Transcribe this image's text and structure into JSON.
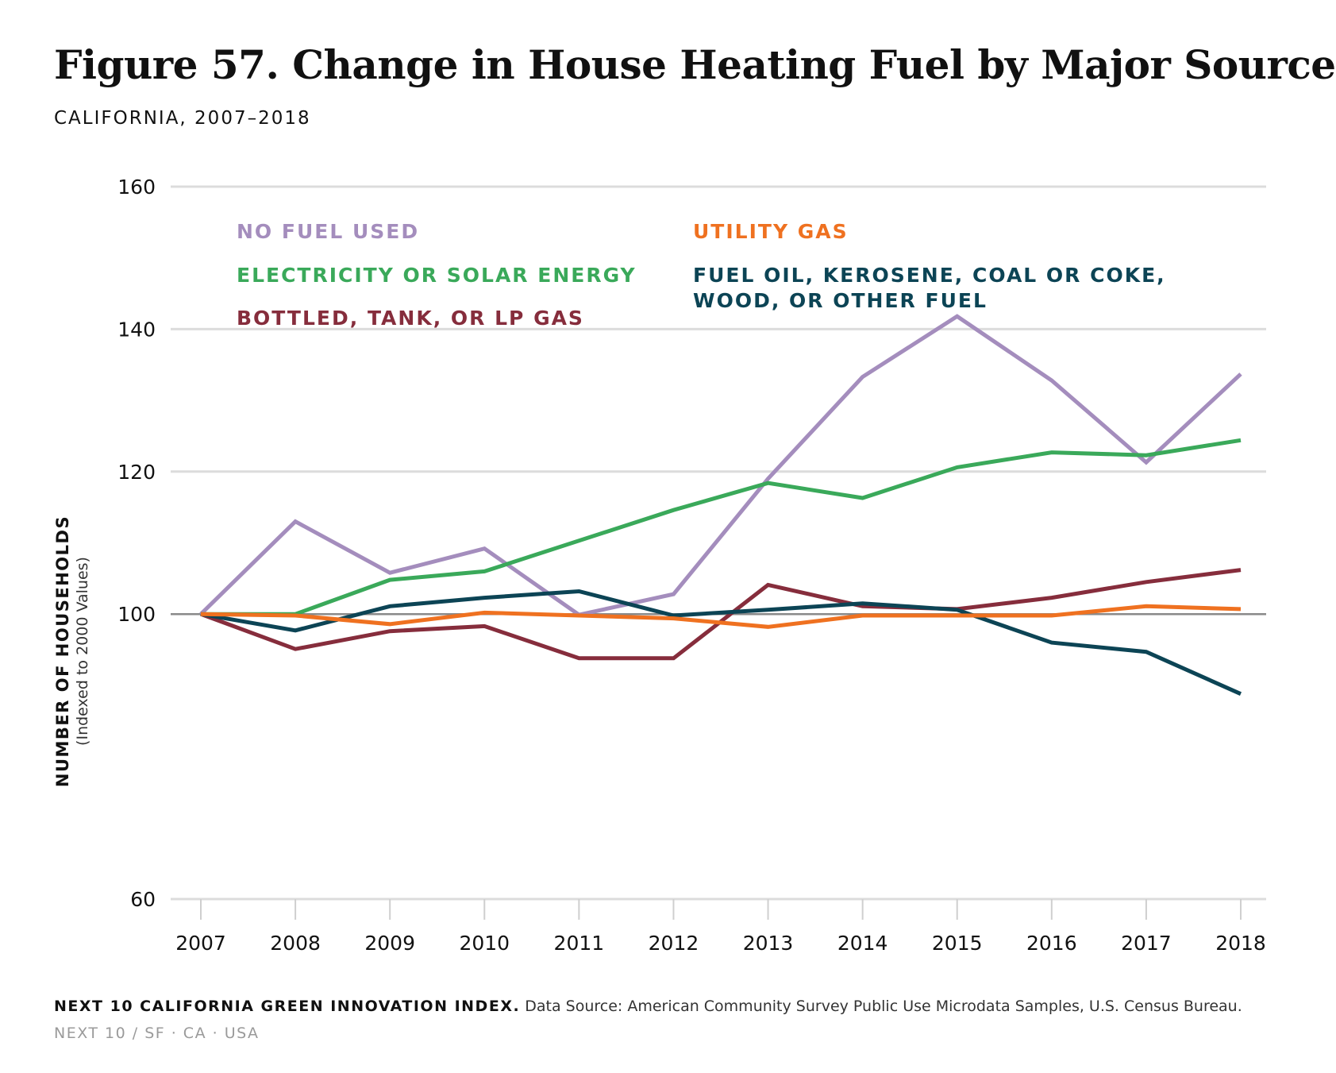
{
  "title": "Figure 57. Change in House Heating Fuel by Major Source",
  "subtitle": "CALIFORNIA, 2007–2018",
  "chart_data": {
    "type": "line",
    "ylabel": "NUMBER OF HOUSEHOLDS",
    "ylabel_sub": "(Indexed to 2000 Values)",
    "ylim": [
      60,
      160
    ],
    "yticks": [
      60,
      100,
      120,
      140,
      160
    ],
    "baseline": 100,
    "x": [
      "2007",
      "2008",
      "2009",
      "2010",
      "2011",
      "2012",
      "2013",
      "2014",
      "2015",
      "2016",
      "2017",
      "2018"
    ],
    "legend_position": "top-left",
    "series": [
      {
        "name": "NO FUEL USED",
        "color": "#a48dbd",
        "values": [
          100,
          113.0,
          105.8,
          109.2,
          99.9,
          102.8,
          119.0,
          133.3,
          141.8,
          132.8,
          121.3,
          133.7
        ]
      },
      {
        "name": "ELECTRICITY OR SOLAR ENERGY",
        "color": "#3aa95a",
        "values": [
          100,
          100,
          104.8,
          106.0,
          110.3,
          114.6,
          118.4,
          116.3,
          120.6,
          122.7,
          122.3,
          124.4
        ]
      },
      {
        "name": "BOTTLED, TANK, OR LP GAS",
        "color": "#862d3c",
        "values": [
          100,
          95.1,
          97.6,
          98.3,
          93.8,
          93.8,
          104.1,
          101.1,
          100.7,
          102.3,
          104.5,
          106.2
        ]
      },
      {
        "name": "UTILITY GAS",
        "color": "#ef7120",
        "values": [
          100,
          99.8,
          98.6,
          100.2,
          99.8,
          99.4,
          98.2,
          99.8,
          99.8,
          99.8,
          101.1,
          100.7
        ]
      },
      {
        "name": "FUEL OIL, KEROSENE, COAL OR COKE, WOOD, OR OTHER FUEL",
        "color": "#0c4455",
        "values": [
          100,
          97.7,
          101.1,
          102.3,
          103.2,
          99.8,
          100.6,
          101.5,
          100.6,
          96.0,
          94.7,
          88.8
        ]
      }
    ]
  },
  "legend": [
    {
      "lines": [
        "NO FUEL USED"
      ],
      "color": "#a48dbd"
    },
    {
      "lines": [
        "ELECTRICITY OR SOLAR ENERGY"
      ],
      "color": "#3aa95a"
    },
    {
      "lines": [
        "BOTTLED, TANK, OR LP GAS"
      ],
      "color": "#862d3c"
    },
    {
      "lines": [
        "UTILITY GAS"
      ],
      "color": "#ef7120"
    },
    {
      "lines": [
        "FUEL OIL, KEROSENE, COAL OR COKE,",
        "WOOD, OR OTHER FUEL"
      ],
      "color": "#0c4455"
    }
  ],
  "footer": {
    "org": "NEXT 10 CALIFORNIA GREEN INNOVATION INDEX.",
    "source": " Data Source: American Community Survey Public Use Microdata Samples, U.S. Census Bureau.",
    "brand": "  NEXT 10  /  SF · CA · USA"
  },
  "colors": {
    "grid": "#dcdcdc",
    "baseline": "#8a8a8a",
    "axis": "#cfcfcf",
    "text": "#111111"
  }
}
